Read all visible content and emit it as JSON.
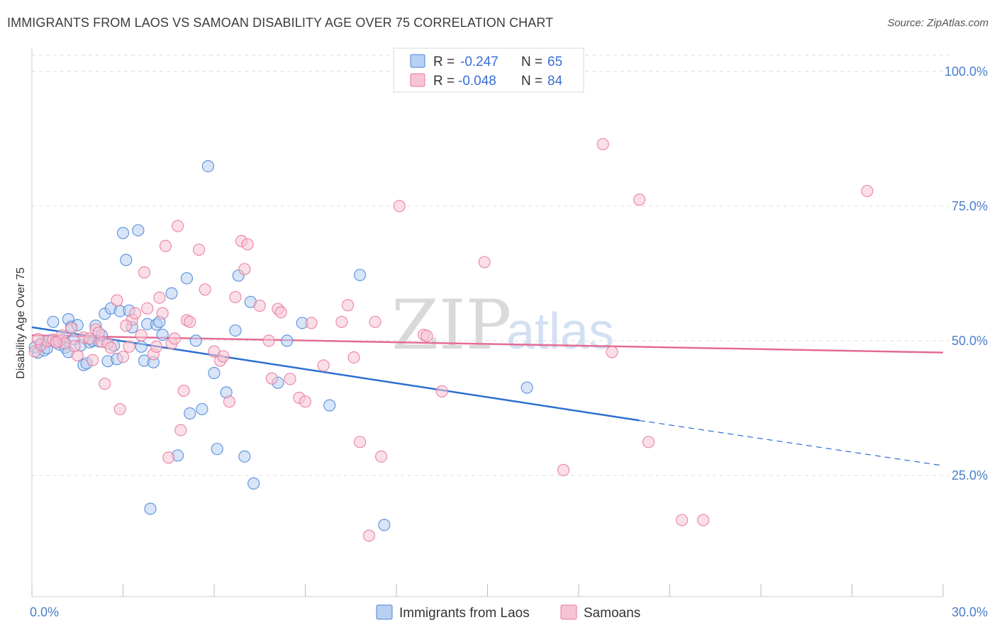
{
  "title": "IMMIGRANTS FROM LAOS VS SAMOAN DISABILITY AGE OVER 75 CORRELATION CHART",
  "source": "Source: ZipAtlas.com",
  "watermark": {
    "zip": "ZIP",
    "atlas": "atlas"
  },
  "colors": {
    "blue": "#4a86d8",
    "blue_fill": "#b8d0f3",
    "blue_line": "#2a6fd1",
    "pink": "#e8799c",
    "pink_fill": "#f7c4d4",
    "pink_line": "#e46b94",
    "grid": "#dcdcdc",
    "tick_text": "#4a7fc9"
  },
  "legend": {
    "rows": [
      {
        "r_label": "R =",
        "r_value": "-0.247",
        "n_label": "N =",
        "n_value": "65"
      },
      {
        "r_label": "R =",
        "r_value": "-0.048",
        "n_label": "N =",
        "n_value": "84"
      }
    ]
  },
  "chart_data": {
    "type": "scatter",
    "xlabel": "",
    "ylabel": "Disability Age Over 75",
    "xlim": [
      0,
      30
    ],
    "ylim": [
      2.5,
      103
    ],
    "x_tick_labels": [
      "0.0%",
      "30.0%"
    ],
    "y_ticks": [
      25,
      50,
      75,
      100
    ],
    "y_tick_labels": [
      "25.0%",
      "50.0%",
      "75.0%",
      "100.0%"
    ],
    "legend_position": "top-center",
    "series": [
      {
        "name": "Immigrants from Laos",
        "color": "#4a86d8",
        "points": [
          [
            0.1,
            48.8
          ],
          [
            0.2,
            47.8
          ],
          [
            0.3,
            49.5
          ],
          [
            0.4,
            48.2
          ],
          [
            0.5,
            48.6
          ],
          [
            0.6,
            50.0
          ],
          [
            0.7,
            53.5
          ],
          [
            0.8,
            49.8
          ],
          [
            0.9,
            49.3
          ],
          [
            1.0,
            50.2
          ],
          [
            1.1,
            48.7
          ],
          [
            1.2,
            47.9
          ],
          [
            1.2,
            54.0
          ],
          [
            1.3,
            52.6
          ],
          [
            1.4,
            50.3
          ],
          [
            1.5,
            52.9
          ],
          [
            1.6,
            49.1
          ],
          [
            1.7,
            45.5
          ],
          [
            1.8,
            45.8
          ],
          [
            1.9,
            49.7
          ],
          [
            2.0,
            50.0
          ],
          [
            2.1,
            52.8
          ],
          [
            2.2,
            49.9
          ],
          [
            2.3,
            51.0
          ],
          [
            2.4,
            55.0
          ],
          [
            2.5,
            46.2
          ],
          [
            2.6,
            56.0
          ],
          [
            2.7,
            49.1
          ],
          [
            2.8,
            46.6
          ],
          [
            2.9,
            55.5
          ],
          [
            3.0,
            70.0
          ],
          [
            3.1,
            65.0
          ],
          [
            3.2,
            55.6
          ],
          [
            3.3,
            52.5
          ],
          [
            3.5,
            70.5
          ],
          [
            3.6,
            48.9
          ],
          [
            3.7,
            46.3
          ],
          [
            3.8,
            53.1
          ],
          [
            3.9,
            18.8
          ],
          [
            4.0,
            46.0
          ],
          [
            4.1,
            53.0
          ],
          [
            4.2,
            53.5
          ],
          [
            4.3,
            51.1
          ],
          [
            4.6,
            58.8
          ],
          [
            4.8,
            28.7
          ],
          [
            5.1,
            61.6
          ],
          [
            5.2,
            36.5
          ],
          [
            5.4,
            50.0
          ],
          [
            5.6,
            37.3
          ],
          [
            5.8,
            82.4
          ],
          [
            6.0,
            44.0
          ],
          [
            6.1,
            29.9
          ],
          [
            6.4,
            40.4
          ],
          [
            6.7,
            51.9
          ],
          [
            6.8,
            62.1
          ],
          [
            7.0,
            28.5
          ],
          [
            7.2,
            57.2
          ],
          [
            7.3,
            23.5
          ],
          [
            8.1,
            42.2
          ],
          [
            8.4,
            50.0
          ],
          [
            8.9,
            53.3
          ],
          [
            9.8,
            38.0
          ],
          [
            10.8,
            62.2
          ],
          [
            11.6,
            15.8
          ],
          [
            16.3,
            41.3
          ]
        ]
      },
      {
        "name": "Samoans",
        "color": "#e8799c",
        "points": [
          [
            0.1,
            48.0
          ],
          [
            0.3,
            49.2
          ],
          [
            0.5,
            49.9
          ],
          [
            0.7,
            50.2
          ],
          [
            0.9,
            50.0
          ],
          [
            1.0,
            51.0
          ],
          [
            1.1,
            49.5
          ],
          [
            1.3,
            52.3
          ],
          [
            1.5,
            47.3
          ],
          [
            1.7,
            50.6
          ],
          [
            1.9,
            50.4
          ],
          [
            2.0,
            46.4
          ],
          [
            2.1,
            52.1
          ],
          [
            2.3,
            49.8
          ],
          [
            2.4,
            42.0
          ],
          [
            2.5,
            49.5
          ],
          [
            2.6,
            48.7
          ],
          [
            2.8,
            57.5
          ],
          [
            2.9,
            37.3
          ],
          [
            3.0,
            47.0
          ],
          [
            3.2,
            48.9
          ],
          [
            3.3,
            53.9
          ],
          [
            3.4,
            55.1
          ],
          [
            3.6,
            51.0
          ],
          [
            3.7,
            62.7
          ],
          [
            3.8,
            56.0
          ],
          [
            4.0,
            47.5
          ],
          [
            4.1,
            48.9
          ],
          [
            4.2,
            58.0
          ],
          [
            4.3,
            55.1
          ],
          [
            4.4,
            67.6
          ],
          [
            4.5,
            28.3
          ],
          [
            4.6,
            49.5
          ],
          [
            4.8,
            71.3
          ],
          [
            4.9,
            33.4
          ],
          [
            5.0,
            40.7
          ],
          [
            5.1,
            53.8
          ],
          [
            5.2,
            53.5
          ],
          [
            5.5,
            66.9
          ],
          [
            5.7,
            59.5
          ],
          [
            6.0,
            48.0
          ],
          [
            6.2,
            46.3
          ],
          [
            6.5,
            38.7
          ],
          [
            6.7,
            58.1
          ],
          [
            6.9,
            68.5
          ],
          [
            7.0,
            63.3
          ],
          [
            7.1,
            67.9
          ],
          [
            7.5,
            56.5
          ],
          [
            7.8,
            50.0
          ],
          [
            7.9,
            43.0
          ],
          [
            8.1,
            55.9
          ],
          [
            8.2,
            55.3
          ],
          [
            8.5,
            42.9
          ],
          [
            8.8,
            39.4
          ],
          [
            9.0,
            38.7
          ],
          [
            9.2,
            53.3
          ],
          [
            10.2,
            53.5
          ],
          [
            10.4,
            56.6
          ],
          [
            10.6,
            46.9
          ],
          [
            10.8,
            31.2
          ],
          [
            11.1,
            13.8
          ],
          [
            11.3,
            53.5
          ],
          [
            11.5,
            28.5
          ],
          [
            12.1,
            75.0
          ],
          [
            12.9,
            51.1
          ],
          [
            13.0,
            50.9
          ],
          [
            13.5,
            40.6
          ],
          [
            14.9,
            64.6
          ],
          [
            17.5,
            26.0
          ],
          [
            18.8,
            86.5
          ],
          [
            19.1,
            47.9
          ],
          [
            20.0,
            76.2
          ],
          [
            20.3,
            31.2
          ],
          [
            21.4,
            16.7
          ],
          [
            22.1,
            16.7
          ],
          [
            27.5,
            77.8
          ],
          [
            0.2,
            50.3
          ],
          [
            0.8,
            49.7
          ],
          [
            1.4,
            49.0
          ],
          [
            2.2,
            51.5
          ],
          [
            3.1,
            52.8
          ],
          [
            4.7,
            50.4
          ],
          [
            6.3,
            47.1
          ],
          [
            9.6,
            45.4
          ]
        ]
      }
    ],
    "trend_lines": [
      {
        "series": "Immigrants from Laos",
        "x_start": 0,
        "y_start": 52.5,
        "x_solid_end": 20.0,
        "y_solid_end": 35.2,
        "x_dash_end": 30.0,
        "y_dash_end": 26.8
      },
      {
        "series": "Samoans",
        "x_start": 0,
        "y_start": 51.0,
        "x_end": 30.0,
        "y_end": 47.8
      }
    ]
  }
}
